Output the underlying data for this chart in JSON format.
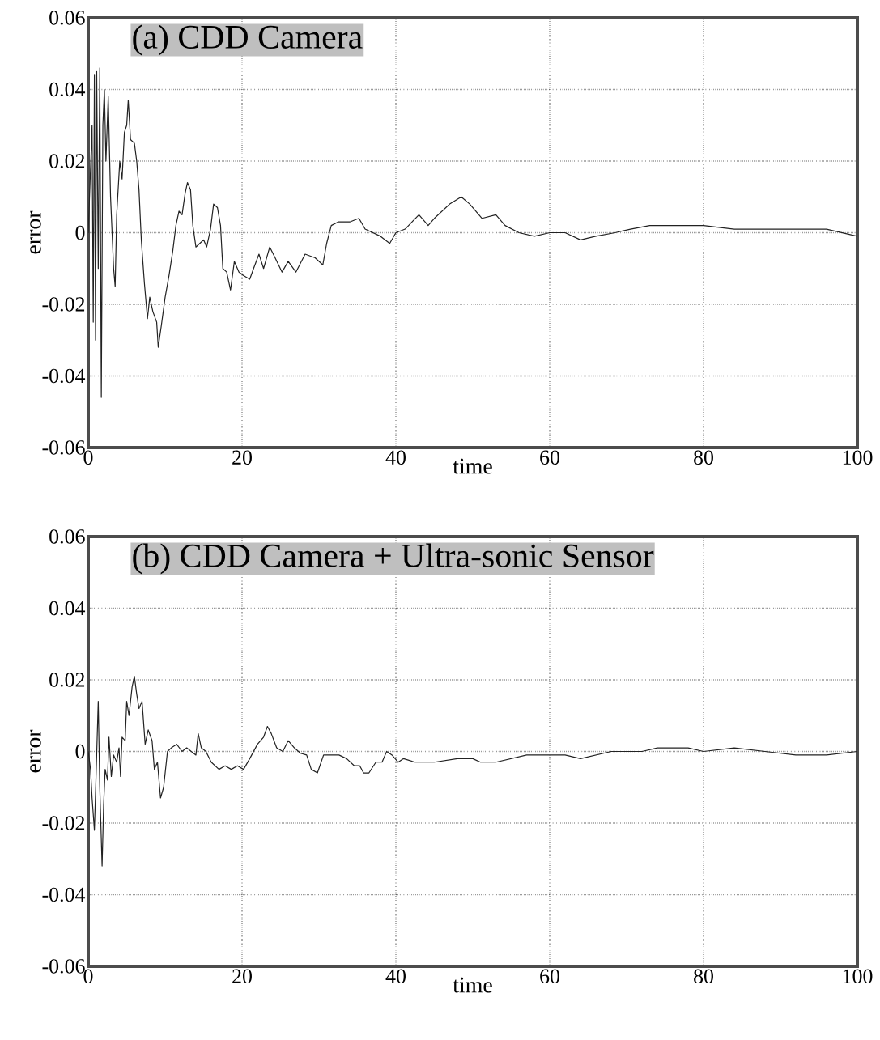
{
  "chart_data": [
    {
      "type": "line",
      "title": "(a) CDD Camera",
      "xlabel": "time",
      "ylabel": "error",
      "color": "#222222",
      "grid": true,
      "xlim": [
        0,
        100
      ],
      "ylim": [
        -0.06,
        0.06
      ],
      "xticks": [
        0,
        20,
        40,
        60,
        80,
        100
      ],
      "yticks": [
        -0.06,
        -0.04,
        -0.02,
        0,
        0.02,
        0.04,
        0.06
      ],
      "x": [
        0,
        0.5,
        0.65,
        0.8,
        0.95,
        1.1,
        1.3,
        1.5,
        1.7,
        1.9,
        2.1,
        2.3,
        2.6,
        2.9,
        3.3,
        3.5,
        3.7,
        4.1,
        4.4,
        4.7,
        5.0,
        5.2,
        5.5,
        6.0,
        6.3,
        6.6,
        6.9,
        7.3,
        7.7,
        8.0,
        8.4,
        8.9,
        9.1,
        9.5,
        10.0,
        10.5,
        11.0,
        11.4,
        11.8,
        12.2,
        12.6,
        12.9,
        13.3,
        13.6,
        14.0,
        14.5,
        15.0,
        15.4,
        15.9,
        16.3,
        16.8,
        17.2,
        17.5,
        18.0,
        18.5,
        19.0,
        19.6,
        20.2,
        21.0,
        21.5,
        22.2,
        22.8,
        23.6,
        24.3,
        25.2,
        26.0,
        27.0,
        28.2,
        29.5,
        30.5,
        31.0,
        31.6,
        32.5,
        34.0,
        35.2,
        36.0,
        37.0,
        38.0,
        39.2,
        40.0,
        41.2,
        43.0,
        44.2,
        45.0,
        47.0,
        48.5,
        49.6,
        51.2,
        53.0,
        54.2,
        56.0,
        58.0,
        60.0,
        62.0,
        64.0,
        66.0,
        68.5,
        70.5,
        73.0,
        76.0,
        80.0,
        84.0,
        88.0,
        92.0,
        96.0,
        100
      ],
      "values": [
        0,
        0.03,
        -0.025,
        0.044,
        -0.03,
        0.045,
        -0.01,
        0.046,
        -0.046,
        0.03,
        0.04,
        0.02,
        0.038,
        0.01,
        -0.01,
        -0.015,
        0.005,
        0.02,
        0.015,
        0.028,
        0.03,
        0.037,
        0.026,
        0.025,
        0.02,
        0.012,
        -0.002,
        -0.014,
        -0.024,
        -0.018,
        -0.022,
        -0.025,
        -0.032,
        -0.026,
        -0.018,
        -0.012,
        -0.005,
        0.002,
        0.006,
        0.005,
        0.011,
        0.014,
        0.012,
        0.002,
        -0.004,
        -0.003,
        -0.002,
        -0.004,
        0.001,
        0.008,
        0.007,
        0.002,
        -0.01,
        -0.011,
        -0.016,
        -0.008,
        -0.011,
        -0.012,
        -0.013,
        -0.01,
        -0.006,
        -0.01,
        -0.004,
        -0.007,
        -0.011,
        -0.008,
        -0.011,
        -0.006,
        -0.007,
        -0.009,
        -0.003,
        0.002,
        0.003,
        0.003,
        0.004,
        0.001,
        0.0,
        -0.001,
        -0.003,
        0.0,
        0.001,
        0.005,
        0.002,
        0.004,
        0.008,
        0.01,
        0.008,
        0.004,
        0.005,
        0.002,
        0.0,
        -0.001,
        0.0,
        0.0,
        -0.002,
        -0.001,
        0.0,
        0.001,
        0.002,
        0.002,
        0.002,
        0.001,
        0.001,
        0.001,
        0.001,
        -0.001
      ]
    },
    {
      "type": "line",
      "title": "(b) CDD Camera + Ultra-sonic Sensor",
      "xlabel": "time",
      "ylabel": "error",
      "color": "#222222",
      "grid": true,
      "xlim": [
        0,
        100
      ],
      "ylim": [
        -0.06,
        0.06
      ],
      "xticks": [
        0,
        20,
        40,
        60,
        80,
        100
      ],
      "yticks": [
        -0.06,
        -0.04,
        -0.02,
        0,
        0.02,
        0.04,
        0.06
      ],
      "x": [
        0,
        0.3,
        0.5,
        0.8,
        1.0,
        1.3,
        1.5,
        1.8,
        2.0,
        2.2,
        2.5,
        2.7,
        3.0,
        3.3,
        3.7,
        4.0,
        4.2,
        4.4,
        4.8,
        5.0,
        5.3,
        5.7,
        6.0,
        6.3,
        6.6,
        7.0,
        7.4,
        7.8,
        8.3,
        8.6,
        9.0,
        9.4,
        9.8,
        10.3,
        10.8,
        11.5,
        12.2,
        12.8,
        13.4,
        14.0,
        14.3,
        14.7,
        15.3,
        16.0,
        17.0,
        17.8,
        18.6,
        19.4,
        20.2,
        21.0,
        22.0,
        22.8,
        23.3,
        23.8,
        24.5,
        25.3,
        26.0,
        26.8,
        27.6,
        28.4,
        29.0,
        29.8,
        30.6,
        31.6,
        32.6,
        33.6,
        34.6,
        35.3,
        35.8,
        36.5,
        37.4,
        38.2,
        38.8,
        39.5,
        40.3,
        41.0,
        42.5,
        45.0,
        48.0,
        50.0,
        51.0,
        53.0,
        55.0,
        57.0,
        60.0,
        62.0,
        64.0,
        66.0,
        68.0,
        72.0,
        74.0,
        78.0,
        80.0,
        84.0,
        88.0,
        92.0,
        96.0,
        100
      ],
      "values": [
        0,
        -0.005,
        -0.013,
        -0.022,
        -0.008,
        0.014,
        -0.01,
        -0.032,
        -0.015,
        -0.005,
        -0.008,
        0.004,
        -0.007,
        -0.001,
        -0.003,
        0.001,
        -0.007,
        0.004,
        0.003,
        0.014,
        0.01,
        0.018,
        0.021,
        0.016,
        0.012,
        0.014,
        0.002,
        0.006,
        0.003,
        -0.005,
        -0.003,
        -0.013,
        -0.01,
        0.0,
        0.001,
        0.002,
        0.0,
        0.001,
        0.0,
        -0.001,
        0.005,
        0.001,
        0.0,
        -0.003,
        -0.005,
        -0.004,
        -0.005,
        -0.004,
        -0.005,
        -0.002,
        0.002,
        0.004,
        0.007,
        0.005,
        0.001,
        0.0,
        0.003,
        0.001,
        -0.0005,
        -0.001,
        -0.005,
        -0.006,
        -0.001,
        -0.001,
        -0.001,
        -0.002,
        -0.004,
        -0.004,
        -0.006,
        -0.006,
        -0.003,
        -0.003,
        0.0,
        -0.001,
        -0.003,
        -0.002,
        -0.003,
        -0.003,
        -0.002,
        -0.002,
        -0.003,
        -0.003,
        -0.002,
        -0.001,
        -0.001,
        -0.001,
        -0.002,
        -0.001,
        0.0,
        0.0,
        0.001,
        0.001,
        0.0,
        0.001,
        0.0,
        -0.001,
        -0.001,
        0.0
      ]
    }
  ]
}
